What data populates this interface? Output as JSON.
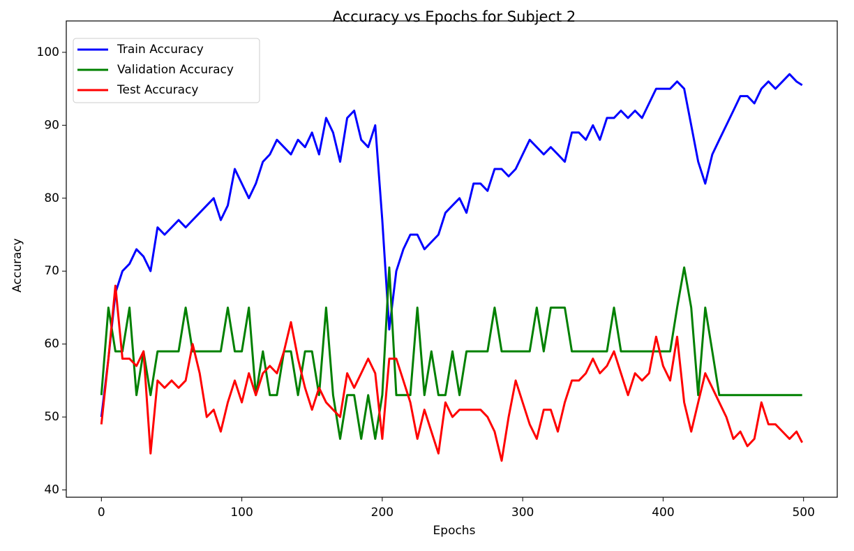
{
  "chart_data": {
    "type": "line",
    "title": "Accuracy vs Epochs for Subject 2",
    "x_label": "Epochs",
    "y_label": "Accuracy",
    "x": [
      0,
      5,
      10,
      15,
      20,
      25,
      30,
      35,
      40,
      45,
      50,
      55,
      60,
      65,
      70,
      75,
      80,
      85,
      90,
      95,
      100,
      105,
      110,
      115,
      120,
      125,
      130,
      135,
      140,
      145,
      150,
      155,
      160,
      165,
      170,
      175,
      180,
      185,
      190,
      195,
      200,
      205,
      210,
      215,
      220,
      225,
      230,
      235,
      240,
      245,
      250,
      255,
      260,
      265,
      270,
      275,
      280,
      285,
      290,
      295,
      300,
      305,
      310,
      315,
      320,
      325,
      330,
      335,
      340,
      345,
      350,
      355,
      360,
      365,
      370,
      375,
      380,
      385,
      390,
      395,
      400,
      405,
      410,
      415,
      420,
      425,
      430,
      435,
      440,
      445,
      450,
      455,
      460,
      465,
      470,
      475,
      480,
      485,
      490,
      495,
      499
    ],
    "series": [
      {
        "name": "Train Accuracy",
        "color": "#0000ff",
        "values": [
          50,
          58,
          67,
          70,
          71,
          73,
          72,
          70,
          76,
          75,
          76,
          77,
          76,
          77,
          78,
          79,
          80,
          77,
          79,
          84,
          82,
          80,
          82,
          85,
          86,
          88,
          87,
          86,
          88,
          87,
          89,
          86,
          91,
          89,
          85,
          91,
          92,
          88,
          87,
          90,
          77,
          62,
          70,
          73,
          75,
          75,
          73,
          74,
          75,
          78,
          79,
          80,
          78,
          82,
          82,
          81,
          84,
          84,
          83,
          84,
          86,
          88,
          87,
          86,
          87,
          86,
          85,
          89,
          89,
          88,
          90,
          88,
          91,
          91,
          92,
          91,
          92,
          91,
          93,
          95,
          95,
          95,
          96,
          95,
          90,
          85,
          82,
          86,
          88,
          90,
          92,
          94,
          94,
          93,
          95,
          96,
          95,
          96,
          97,
          96,
          95.5
        ]
      },
      {
        "name": "Validation Accuracy",
        "color": "#008000",
        "values": [
          53,
          65,
          59,
          59,
          65,
          53,
          59,
          53,
          59,
          59,
          59,
          59,
          65,
          59,
          59,
          59,
          59,
          59,
          65,
          59,
          59,
          65,
          53,
          59,
          53,
          53,
          59,
          59,
          53,
          59,
          59,
          53,
          65,
          53,
          47,
          53,
          53,
          47,
          53,
          47,
          53,
          70.5,
          53,
          53,
          53,
          65,
          53,
          59,
          53,
          53,
          59,
          53,
          59,
          59,
          59,
          59,
          65,
          59,
          59,
          59,
          59,
          59,
          65,
          59,
          65,
          65,
          65,
          59,
          59,
          59,
          59,
          59,
          59,
          65,
          59,
          59,
          59,
          59,
          59,
          59,
          59,
          59,
          65,
          70.5,
          65,
          53,
          65,
          59,
          53,
          53,
          53,
          53,
          53,
          53,
          53,
          53,
          53,
          53,
          53,
          53,
          53
        ]
      },
      {
        "name": "Test Accuracy",
        "color": "#ff0000",
        "values": [
          49,
          58,
          68,
          58,
          58,
          57,
          59,
          45,
          55,
          54,
          55,
          54,
          55,
          60,
          56,
          50,
          51,
          48,
          52,
          55,
          52,
          56,
          53,
          56,
          57,
          56,
          59,
          63,
          58,
          54,
          51,
          54,
          52,
          51,
          50,
          56,
          54,
          56,
          58,
          56,
          47,
          58,
          58,
          55,
          52,
          47,
          51,
          48,
          45,
          52,
          50,
          51,
          51,
          51,
          51,
          50,
          48,
          44,
          50,
          55,
          52,
          49,
          47,
          51,
          51,
          48,
          52,
          55,
          55,
          56,
          58,
          56,
          57,
          59,
          56,
          53,
          56,
          55,
          56,
          61,
          57,
          55,
          61,
          52,
          48,
          52,
          56,
          54,
          52,
          50,
          47,
          48,
          46,
          47,
          52,
          49,
          49,
          48,
          47,
          48,
          46.5
        ]
      }
    ],
    "xlim": [
      -25,
      524
    ],
    "ylim": [
      39,
      104.3
    ],
    "xticks": [
      0,
      100,
      200,
      300,
      400,
      500
    ],
    "yticks": [
      40,
      50,
      60,
      70,
      80,
      90,
      100
    ],
    "grid": false,
    "legend": "upper left"
  }
}
